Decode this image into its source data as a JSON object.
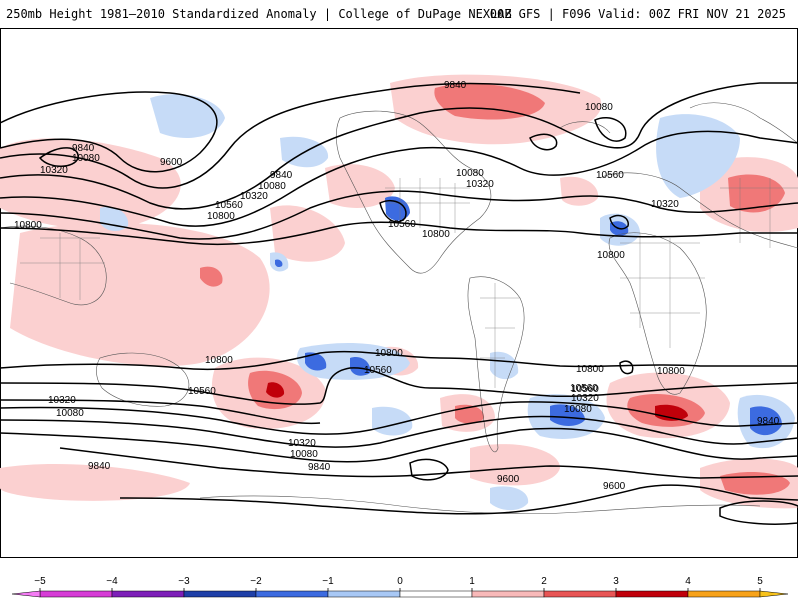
{
  "header": {
    "title_left": "250mb Height 1981–2010 Standardized Anomaly | College of DuPage NEXLAB",
    "title_right": "00Z GFS | F096 Valid: 00Z FRI NOV 21 2025"
  },
  "contour_labels": {
    "c1": "9840",
    "c2": "10080",
    "c3": "9840",
    "c4": "10080",
    "c5": "10320",
    "c6": "9600",
    "c7": "9840",
    "c8": "10080",
    "c9": "10320",
    "c10": "10560",
    "c11": "10800",
    "c12": "10800",
    "c13": "10560",
    "c14": "10800",
    "c15": "10080",
    "c16": "10320",
    "c17": "10560",
    "c18": "10320",
    "c19": "10800",
    "c20": "10800",
    "c21": "10560",
    "c22": "10800",
    "c23": "10560",
    "c24": "10320",
    "c25": "10080",
    "c26": "10320",
    "c27": "10080",
    "c28": "9840",
    "c29": "10800",
    "c30": "10560",
    "c31": "10800",
    "c32": "10560",
    "c33": "10320",
    "c34": "10080",
    "c35": "9840",
    "c36": "9840",
    "c37": "9600",
    "c38": "9600"
  },
  "colorbar": {
    "ticks": [
      "−5",
      "−4",
      "−3",
      "−2",
      "−1",
      "0",
      "1",
      "2",
      "3",
      "4",
      "5"
    ],
    "colors": [
      "#d63cd6",
      "#7d1fb8",
      "#1e3fa8",
      "#3c6be0",
      "#a8c8f5",
      "#ffffff",
      "#ffffff",
      "#f8b9b9",
      "#e85555",
      "#c0000a",
      "#f7a21a"
    ],
    "end_left": "#f47bf4",
    "end_right": "#f7c21a"
  }
}
